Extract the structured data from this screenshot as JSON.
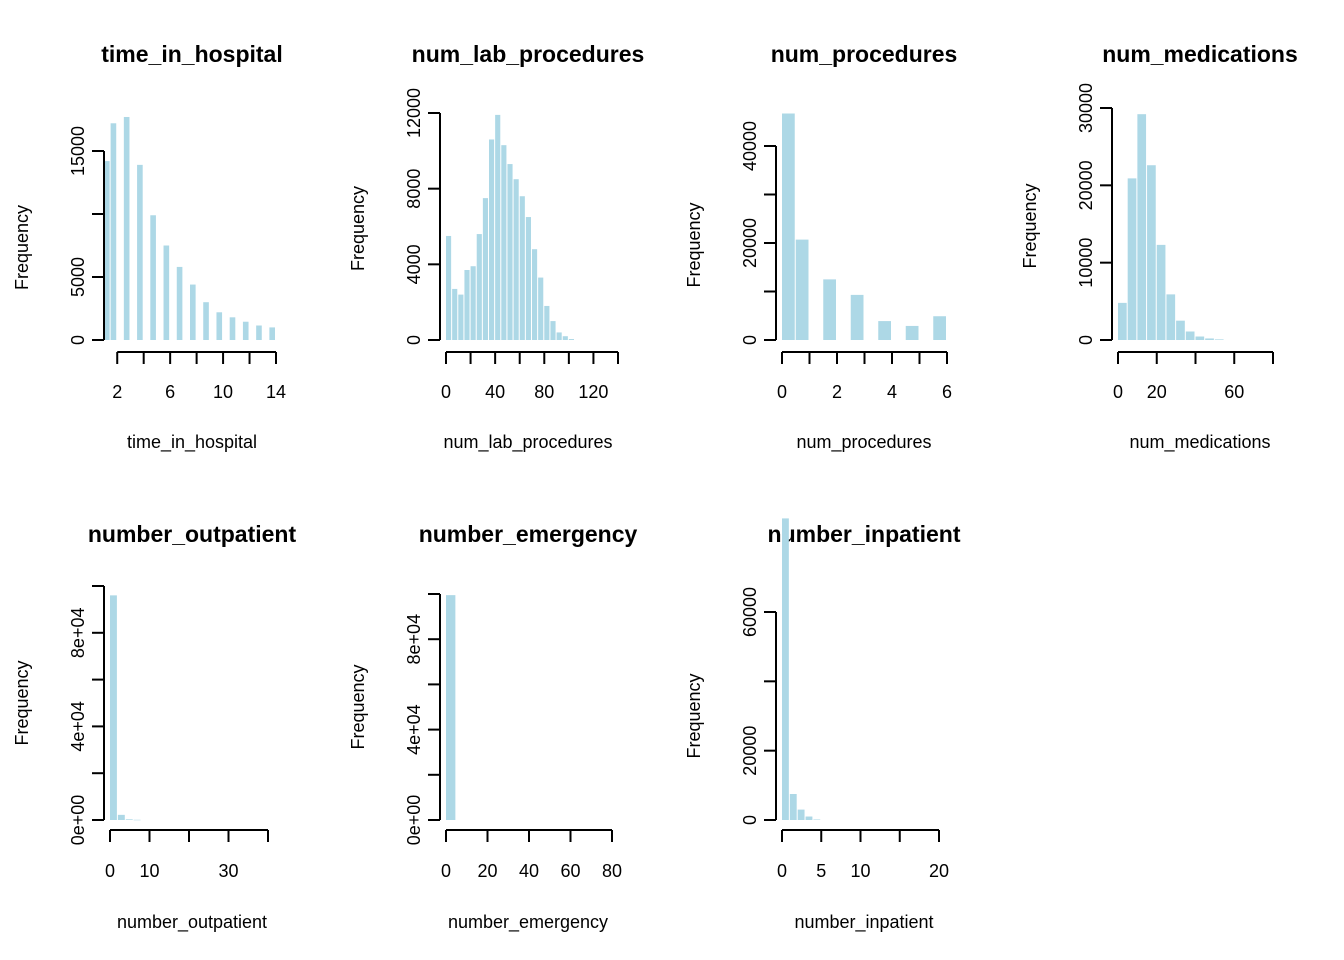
{
  "chart_data": [
    {
      "type": "bar",
      "title": "time_in_hospital",
      "xlabel": "time_in_hospital",
      "ylabel": "Frequency",
      "xlim": [
        1,
        14
      ],
      "ylim": [
        0,
        18000
      ],
      "xticks": [
        2,
        6,
        10,
        14
      ],
      "xtick_lines": [
        2,
        4,
        6,
        8,
        10,
        12,
        14
      ],
      "yticks": [
        0,
        5000,
        10000,
        15000
      ],
      "ytick_labels": [
        "0",
        "5000",
        "",
        "15000"
      ],
      "bars": [
        {
          "x0": 1.0,
          "x1": 1.5,
          "y": 14200
        },
        {
          "x0": 1.5,
          "x1": 2.0,
          "y": 17200
        },
        {
          "x0": 2.5,
          "x1": 3.0,
          "y": 17700
        },
        {
          "x0": 3.5,
          "x1": 4.0,
          "y": 13900
        },
        {
          "x0": 4.5,
          "x1": 5.0,
          "y": 9900
        },
        {
          "x0": 5.5,
          "x1": 6.0,
          "y": 7500
        },
        {
          "x0": 6.5,
          "x1": 7.0,
          "y": 5800
        },
        {
          "x0": 7.5,
          "x1": 8.0,
          "y": 4400
        },
        {
          "x0": 8.5,
          "x1": 9.0,
          "y": 3000
        },
        {
          "x0": 9.5,
          "x1": 10.0,
          "y": 2200
        },
        {
          "x0": 10.5,
          "x1": 11.0,
          "y": 1800
        },
        {
          "x0": 11.5,
          "x1": 12.0,
          "y": 1450
        },
        {
          "x0": 12.5,
          "x1": 13.0,
          "y": 1150
        },
        {
          "x0": 13.5,
          "x1": 14.0,
          "y": 1000
        }
      ]
    },
    {
      "type": "bar",
      "title": "num_lab_procedures",
      "xlabel": "num_lab_procedures",
      "ylabel": "Frequency",
      "xlim": [
        0,
        140
      ],
      "ylim": [
        0,
        12000
      ],
      "xticks": [
        0,
        40,
        80,
        120
      ],
      "xtick_lines": [
        0,
        20,
        40,
        60,
        80,
        100,
        120,
        140
      ],
      "yticks": [
        0,
        4000,
        8000,
        12000
      ],
      "ytick_labels": [
        "0",
        "4000",
        "8000",
        "12000"
      ],
      "bars": [
        {
          "x0": 0,
          "x1": 5,
          "y": 5500
        },
        {
          "x0": 5,
          "x1": 10,
          "y": 2700
        },
        {
          "x0": 10,
          "x1": 15,
          "y": 2400
        },
        {
          "x0": 15,
          "x1": 20,
          "y": 3700
        },
        {
          "x0": 20,
          "x1": 25,
          "y": 3900
        },
        {
          "x0": 25,
          "x1": 30,
          "y": 5600
        },
        {
          "x0": 30,
          "x1": 35,
          "y": 7500
        },
        {
          "x0": 35,
          "x1": 40,
          "y": 10600
        },
        {
          "x0": 40,
          "x1": 45,
          "y": 11900
        },
        {
          "x0": 45,
          "x1": 50,
          "y": 10300
        },
        {
          "x0": 50,
          "x1": 55,
          "y": 9300
        },
        {
          "x0": 55,
          "x1": 60,
          "y": 8500
        },
        {
          "x0": 60,
          "x1": 65,
          "y": 7600
        },
        {
          "x0": 65,
          "x1": 70,
          "y": 6500
        },
        {
          "x0": 70,
          "x1": 75,
          "y": 4800
        },
        {
          "x0": 75,
          "x1": 80,
          "y": 3300
        },
        {
          "x0": 80,
          "x1": 85,
          "y": 1800
        },
        {
          "x0": 85,
          "x1": 90,
          "y": 1000
        },
        {
          "x0": 90,
          "x1": 95,
          "y": 400
        },
        {
          "x0": 95,
          "x1": 100,
          "y": 200
        },
        {
          "x0": 100,
          "x1": 105,
          "y": 50
        }
      ]
    },
    {
      "type": "bar",
      "title": "num_procedures",
      "xlabel": "num_procedures",
      "ylabel": "Frequency",
      "xlim": [
        0,
        6
      ],
      "ylim": [
        0,
        48000
      ],
      "xticks": [
        0,
        2,
        4,
        6
      ],
      "xtick_lines": [
        0,
        1,
        2,
        3,
        4,
        5,
        6
      ],
      "yticks": [
        0,
        10000,
        20000,
        30000,
        40000
      ],
      "ytick_labels": [
        "0",
        "",
        "20000",
        "",
        "40000"
      ],
      "bars": [
        {
          "x0": 0.0,
          "x1": 0.5,
          "y": 46700
        },
        {
          "x0": 0.5,
          "x1": 1.0,
          "y": 20700
        },
        {
          "x0": 1.5,
          "x1": 2.0,
          "y": 12500
        },
        {
          "x0": 2.5,
          "x1": 3.0,
          "y": 9300
        },
        {
          "x0": 3.5,
          "x1": 4.0,
          "y": 3900
        },
        {
          "x0": 4.5,
          "x1": 5.0,
          "y": 2900
        },
        {
          "x0": 5.5,
          "x1": 6.0,
          "y": 4900
        }
      ]
    },
    {
      "type": "bar",
      "title": "num_medications",
      "xlabel": "num_medications",
      "ylabel": "Frequency",
      "xlim": [
        0,
        80
      ],
      "ylim": [
        0,
        30000
      ],
      "xticks": [
        0,
        20,
        60
      ],
      "xtick_lines": [
        0,
        20,
        40,
        60,
        80
      ],
      "yticks": [
        0,
        10000,
        20000,
        30000
      ],
      "ytick_labels": [
        "0",
        "10000",
        "20000",
        "30000"
      ],
      "bars": [
        {
          "x0": 0,
          "x1": 5,
          "y": 4800
        },
        {
          "x0": 5,
          "x1": 10,
          "y": 20900
        },
        {
          "x0": 10,
          "x1": 15,
          "y": 29200
        },
        {
          "x0": 15,
          "x1": 20,
          "y": 22600
        },
        {
          "x0": 20,
          "x1": 25,
          "y": 12300
        },
        {
          "x0": 25,
          "x1": 30,
          "y": 5900
        },
        {
          "x0": 30,
          "x1": 35,
          "y": 2500
        },
        {
          "x0": 35,
          "x1": 40,
          "y": 1100
        },
        {
          "x0": 40,
          "x1": 45,
          "y": 450
        },
        {
          "x0": 45,
          "x1": 50,
          "y": 200
        },
        {
          "x0": 50,
          "x1": 55,
          "y": 80
        }
      ]
    },
    {
      "type": "bar",
      "title": "number_outpatient",
      "xlabel": "number_outpatient",
      "ylabel": "Frequency",
      "xlim": [
        0,
        40
      ],
      "ylim": [
        0,
        100000
      ],
      "xticks": [
        0,
        10,
        30
      ],
      "xtick_lines": [
        0,
        10,
        20,
        30,
        40
      ],
      "yticks": [
        0,
        20000,
        40000,
        60000,
        80000,
        100000
      ],
      "ytick_labels": [
        "0e+00",
        "",
        "4e+04",
        "",
        "8e+04",
        ""
      ],
      "bars": [
        {
          "x0": 0,
          "x1": 2,
          "y": 96000
        },
        {
          "x0": 2,
          "x1": 4,
          "y": 2200
        },
        {
          "x0": 4,
          "x1": 6,
          "y": 300
        },
        {
          "x0": 6,
          "x1": 8,
          "y": 100
        }
      ]
    },
    {
      "type": "bar",
      "title": "number_emergency",
      "xlabel": "number_emergency",
      "ylabel": "Frequency",
      "xlim": [
        0,
        80
      ],
      "ylim": [
        0,
        100000
      ],
      "xticks": [
        0,
        20,
        40,
        60,
        80
      ],
      "xtick_lines": [
        0,
        20,
        40,
        60,
        80
      ],
      "yticks": [
        0,
        20000,
        40000,
        60000,
        80000,
        100000
      ],
      "ytick_labels": [
        "0e+00",
        "",
        "4e+04",
        "",
        "8e+04",
        ""
      ],
      "bars": [
        {
          "x0": 0,
          "x1": 5,
          "y": 99500
        }
      ]
    },
    {
      "type": "bar",
      "title": "number_inpatient",
      "xlabel": "number_inpatient",
      "ylabel": "Frequency",
      "xlim": [
        0,
        20
      ],
      "ylim": [
        0,
        80000
      ],
      "xticks": [
        0,
        5,
        10,
        20
      ],
      "xtick_lines": [
        0,
        5,
        10,
        15,
        20
      ],
      "yticks": [
        0,
        20000,
        40000,
        60000
      ],
      "ytick_labels": [
        "0",
        "20000",
        "",
        "60000"
      ],
      "bars": [
        {
          "x0": 0,
          "x1": 1,
          "y": 87000
        },
        {
          "x0": 1,
          "x1": 2,
          "y": 7500
        },
        {
          "x0": 2,
          "x1": 3,
          "y": 3000
        },
        {
          "x0": 3,
          "x1": 4,
          "y": 1000
        },
        {
          "x0": 4,
          "x1": 5,
          "y": 150
        }
      ]
    }
  ]
}
